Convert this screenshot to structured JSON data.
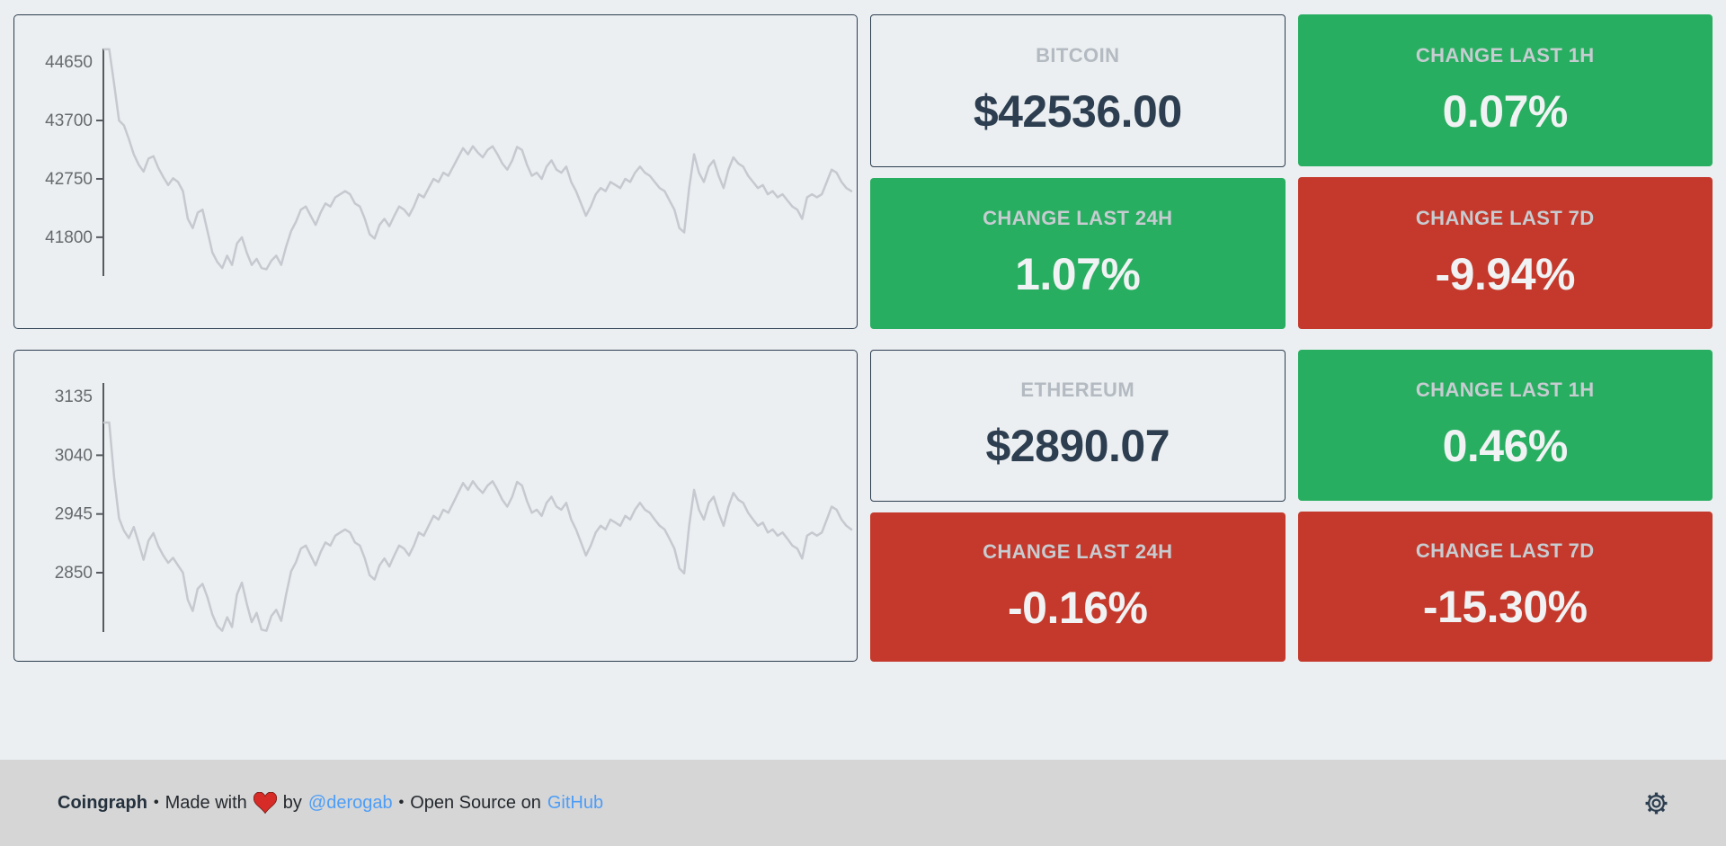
{
  "colors": {
    "page_bg": "#eceff1",
    "up_green": "#27ae60",
    "down_red": "#c4392b",
    "accent_dark": "#2c3e50",
    "footer_bg": "#d6d6d6",
    "link_blue": "#4d9df7",
    "chart_line": "#c6cad0",
    "chart_axis": "#565b61",
    "chart_tick_text": "#66696d",
    "heart_red": "#d62b26"
  },
  "coins": [
    {
      "name_label": "BITCOIN",
      "price": "$42536.00",
      "changes": [
        {
          "label": "CHANGE LAST 1H",
          "value": "0.07%",
          "direction": "up"
        },
        {
          "label": "CHANGE LAST 24H",
          "value": "1.07%",
          "direction": "up"
        },
        {
          "label": "CHANGE LAST 7D",
          "value": "-9.94%",
          "direction": "down"
        }
      ]
    },
    {
      "name_label": "ETHEREUM",
      "price": "$2890.07",
      "changes": [
        {
          "label": "CHANGE LAST 1H",
          "value": "0.46%",
          "direction": "up"
        },
        {
          "label": "CHANGE LAST 24H",
          "value": "-0.16%",
          "direction": "down"
        },
        {
          "label": "CHANGE LAST 7D",
          "value": "-15.30%",
          "direction": "down"
        }
      ]
    }
  ],
  "chart_data": [
    {
      "type": "line",
      "title": "",
      "xlabel": "",
      "ylabel": "",
      "legend": "none",
      "grid": false,
      "x_tick_labels": "none",
      "yticks": [
        44650,
        43700,
        42750,
        41800
      ],
      "ylim": [
        41170,
        44870
      ],
      "series": [
        {
          "name": "BITCOIN",
          "values": [
            44860,
            44860,
            44300,
            43700,
            43620,
            43400,
            43150,
            42980,
            42870,
            43080,
            43120,
            42930,
            42780,
            42650,
            42760,
            42700,
            42550,
            42100,
            41950,
            42200,
            42250,
            41900,
            41550,
            41400,
            41300,
            41500,
            41350,
            41700,
            41800,
            41550,
            41350,
            41450,
            41300,
            41280,
            41420,
            41500,
            41350,
            41650,
            41900,
            42050,
            42250,
            42300,
            42150,
            42000,
            42200,
            42350,
            42300,
            42450,
            42500,
            42550,
            42500,
            42350,
            42300,
            42100,
            41850,
            41780,
            42000,
            42100,
            41980,
            42150,
            42300,
            42250,
            42150,
            42300,
            42500,
            42450,
            42600,
            42750,
            42700,
            42850,
            42800,
            42950,
            43100,
            43250,
            43150,
            43280,
            43180,
            43100,
            43220,
            43280,
            43150,
            43000,
            42900,
            43050,
            43270,
            43220,
            42980,
            42800,
            42850,
            42750,
            42950,
            43050,
            42900,
            42850,
            42950,
            42700,
            42550,
            42350,
            42150,
            42300,
            42500,
            42600,
            42550,
            42700,
            42650,
            42600,
            42750,
            42700,
            42850,
            42950,
            42850,
            42800,
            42700,
            42600,
            42550,
            42400,
            42250,
            41950,
            41880,
            42600,
            43150,
            42850,
            42700,
            42950,
            43050,
            42800,
            42600,
            42900,
            43100,
            43000,
            42950,
            42800,
            42700,
            42600,
            42650,
            42500,
            42550,
            42450,
            42500,
            42400,
            42300,
            42250,
            42100,
            42450,
            42500,
            42450,
            42500,
            42700,
            42900,
            42850,
            42700,
            42600,
            42550
          ]
        }
      ]
    },
    {
      "type": "line",
      "title": "",
      "xlabel": "",
      "ylabel": "",
      "legend": "none",
      "grid": false,
      "x_tick_labels": "none",
      "yticks": [
        3135,
        3040,
        2945,
        2850
      ],
      "ylim": [
        2754,
        3157
      ],
      "series": [
        {
          "name": "ETHEREUM",
          "values": [
            3093,
            3093,
            3005,
            2938,
            2918,
            2906,
            2924,
            2898,
            2871,
            2902,
            2914,
            2893,
            2878,
            2866,
            2874,
            2862,
            2850,
            2806,
            2788,
            2824,
            2832,
            2810,
            2782,
            2764,
            2756,
            2778,
            2762,
            2815,
            2834,
            2800,
            2770,
            2785,
            2758,
            2756,
            2780,
            2790,
            2772,
            2815,
            2852,
            2867,
            2889,
            2894,
            2878,
            2862,
            2883,
            2899,
            2894,
            2910,
            2915,
            2920,
            2915,
            2899,
            2894,
            2873,
            2846,
            2839,
            2862,
            2873,
            2860,
            2878,
            2894,
            2889,
            2878,
            2894,
            2915,
            2910,
            2926,
            2942,
            2936,
            2952,
            2947,
            2963,
            2979,
            2995,
            2984,
            2998,
            2987,
            2979,
            2991,
            2998,
            2984,
            2968,
            2957,
            2973,
            2997,
            2991,
            2966,
            2947,
            2952,
            2942,
            2963,
            2973,
            2957,
            2952,
            2963,
            2936,
            2920,
            2899,
            2878,
            2894,
            2915,
            2926,
            2920,
            2936,
            2931,
            2926,
            2942,
            2936,
            2952,
            2963,
            2952,
            2947,
            2936,
            2926,
            2920,
            2905,
            2889,
            2857,
            2849,
            2926,
            2984,
            2952,
            2936,
            2963,
            2973,
            2947,
            2926,
            2957,
            2979,
            2968,
            2963,
            2947,
            2936,
            2926,
            2931,
            2915,
            2920,
            2910,
            2915,
            2905,
            2894,
            2889,
            2873,
            2910,
            2915,
            2910,
            2915,
            2936,
            2957,
            2952,
            2936,
            2926,
            2920
          ]
        }
      ]
    }
  ],
  "footer": {
    "brand": "Coingraph",
    "separator": "•",
    "made_with": "Made with",
    "by": "by",
    "author_link": "@derogab",
    "open_source": "Open Source on",
    "github_link": "GitHub"
  }
}
